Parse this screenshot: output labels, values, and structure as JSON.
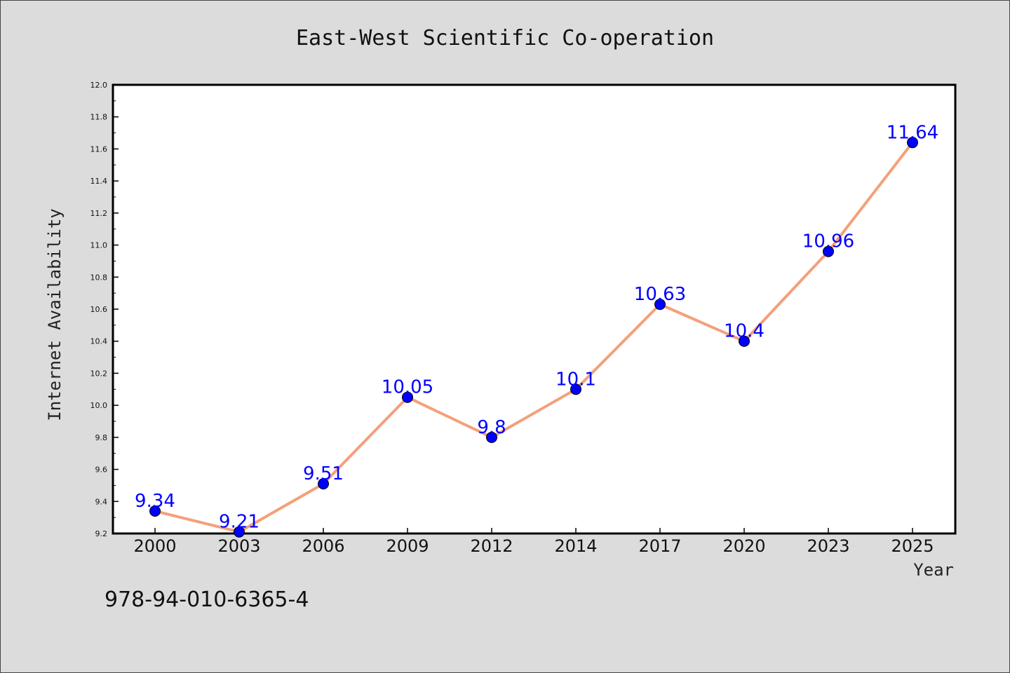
{
  "chart_data": {
    "type": "line",
    "title": "East-West Scientific Co-operation",
    "xlabel": "Year",
    "ylabel": "Internet Availability",
    "categories": [
      "2000",
      "2003",
      "2006",
      "2009",
      "2012",
      "2014",
      "2017",
      "2020",
      "2023",
      "2025"
    ],
    "series": [
      {
        "values": [
          9.34,
          9.21,
          9.51,
          10.05,
          9.8,
          10.1,
          10.63,
          10.4,
          10.96,
          11.64
        ],
        "data_labels": [
          "9.34",
          "9.21",
          "9.51",
          "10.05",
          "9.8",
          "10.1",
          "10.63",
          "10.4",
          "10.96",
          "11.64"
        ],
        "line_color": "#f4a07a",
        "marker_color": "#0000ff"
      }
    ],
    "ylim": [
      9.2,
      12.0
    ],
    "yticks": [
      "9.2",
      "9.4",
      "9.6",
      "9.8",
      "10.0",
      "10.2",
      "10.4",
      "10.6",
      "10.8",
      "11.0",
      "11.2",
      "11.4",
      "11.6",
      "11.8",
      "12.0"
    ],
    "grid": false,
    "legend": "none",
    "label_color": "#0000ff"
  },
  "footer": {
    "isbn": "978-94-010-6365-4"
  }
}
